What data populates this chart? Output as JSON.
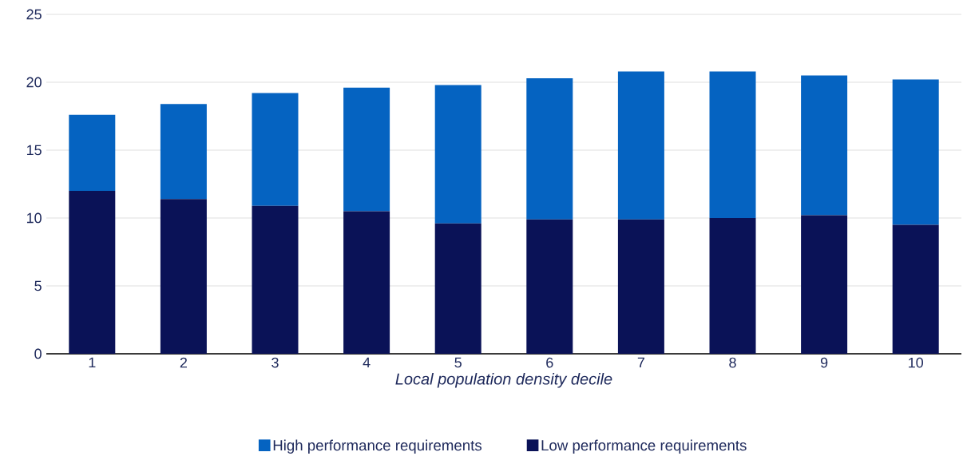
{
  "chart_data": {
    "type": "bar",
    "stacked": true,
    "xlabel": "Local population density decile",
    "categories": [
      "1",
      "2",
      "3",
      "4",
      "5",
      "6",
      "7",
      "8",
      "9",
      "10"
    ],
    "series": [
      {
        "name": "Low performance requirements",
        "color": "#0a1257",
        "values": [
          12.0,
          11.4,
          10.9,
          10.5,
          9.6,
          9.9,
          9.9,
          10.0,
          10.2,
          9.5
        ]
      },
      {
        "name": "High performance requirements",
        "color": "#0563c1",
        "values": [
          5.6,
          7.0,
          8.3,
          9.1,
          10.2,
          10.4,
          10.9,
          10.8,
          10.3,
          10.7
        ]
      }
    ],
    "ylim": [
      0,
      25
    ],
    "yticks": [
      0,
      5,
      10,
      15,
      20,
      25
    ],
    "grid": "y",
    "legend": "bottom"
  }
}
